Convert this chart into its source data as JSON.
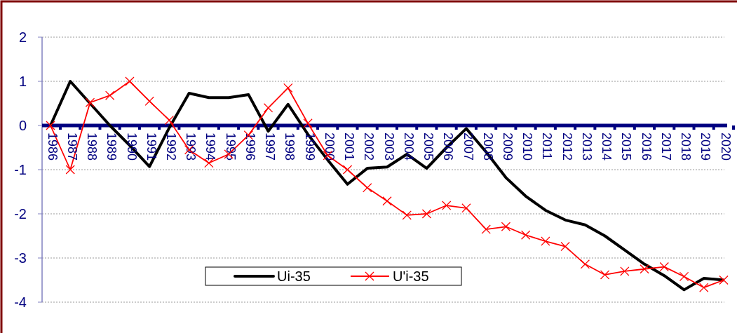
{
  "chart_data": {
    "type": "line",
    "categories": [
      "1986",
      "1987",
      "1988",
      "1989",
      "1990",
      "1991",
      "1992",
      "1993",
      "1994",
      "1995",
      "1996",
      "1997",
      "1998",
      "1999",
      "2000",
      "2001",
      "2002",
      "2003",
      "2004",
      "2005",
      "2006",
      "2007",
      "2008",
      "2009",
      "2010",
      "2011",
      "2012",
      "2013",
      "2014",
      "2015",
      "2016",
      "2017",
      "2018",
      "2019",
      "2020"
    ],
    "series": [
      {
        "name": "Ui-35",
        "color": "#000000",
        "marker": "none",
        "values": [
          0,
          1.0,
          0.5,
          0.0,
          -0.45,
          -0.93,
          -0.05,
          0.73,
          0.63,
          0.63,
          0.7,
          -0.13,
          0.48,
          -0.2,
          -0.78,
          -1.33,
          -0.97,
          -0.94,
          -0.65,
          -0.97,
          -0.5,
          -0.07,
          -0.6,
          -1.18,
          -1.6,
          -1.92,
          -2.14,
          -2.25,
          -2.5,
          -2.82,
          -3.14,
          -3.4,
          -3.72,
          -3.46,
          -3.5
        ]
      },
      {
        "name": "U'i-35",
        "color": "#ff0000",
        "marker": "cross",
        "values": [
          0,
          -1.0,
          0.52,
          0.68,
          1.0,
          0.55,
          0.12,
          -0.55,
          -0.85,
          -0.65,
          -0.22,
          0.4,
          0.85,
          0.05,
          -0.68,
          -1.0,
          -1.41,
          -1.71,
          -2.03,
          -2.0,
          -1.81,
          -1.87,
          -2.35,
          -2.29,
          -2.48,
          -2.62,
          -2.74,
          -3.14,
          -3.38,
          -3.3,
          -3.25,
          -3.2,
          -3.42,
          -3.67,
          -3.5
        ]
      }
    ],
    "ylim": [
      -4,
      2
    ],
    "yticks": [
      -4,
      -3,
      -2,
      -1,
      0,
      1,
      2
    ],
    "grid": "y",
    "legend": "bottom"
  }
}
